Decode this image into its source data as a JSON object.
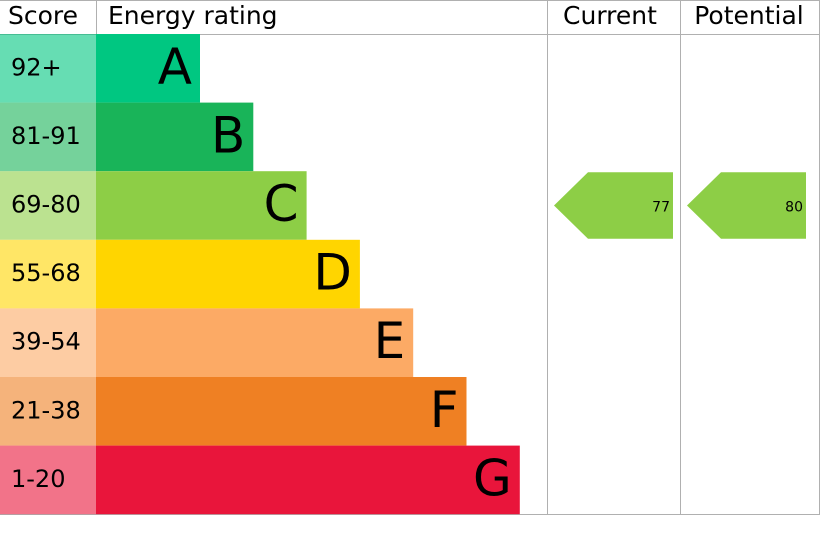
{
  "header": {
    "score": "Score",
    "rating": "Energy rating",
    "current": "Current",
    "potential": "Potential"
  },
  "bands": [
    {
      "score": "92+",
      "letter": "A",
      "color": "#00c781"
    },
    {
      "score": "81-91",
      "letter": "B",
      "color": "#19b459"
    },
    {
      "score": "69-80",
      "letter": "C",
      "color": "#8dce46"
    },
    {
      "score": "55-68",
      "letter": "D",
      "color": "#ffd500"
    },
    {
      "score": "39-54",
      "letter": "E",
      "color": "#fcaa65"
    },
    {
      "score": "21-38",
      "letter": "F",
      "color": "#ef8023"
    },
    {
      "score": "1-20",
      "letter": "G",
      "color": "#e9153b"
    }
  ],
  "current": {
    "value": 77,
    "color": "#8dce46"
  },
  "potential": {
    "value": 80,
    "color": "#8dce46"
  }
}
